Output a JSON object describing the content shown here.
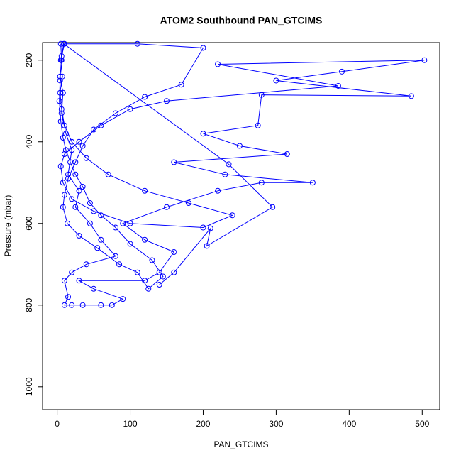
{
  "chart_data": {
    "type": "line",
    "title": "ATOM2 Southbound PAN_GTCIMS",
    "x_label": "PAN_GTCIMS",
    "y_label": "Pressure (mbar)",
    "x": [
      5,
      6,
      4,
      8,
      6,
      12,
      20,
      15,
      30,
      25,
      45,
      60,
      80,
      40,
      20,
      10,
      15,
      10,
      20,
      35,
      60,
      75,
      90,
      50,
      30,
      120,
      140,
      160,
      120,
      90,
      150,
      220,
      280,
      350,
      230,
      160,
      315,
      250,
      200,
      275,
      280,
      485,
      300,
      390,
      503,
      220,
      385,
      150,
      100,
      60,
      30,
      10,
      5,
      8,
      20,
      50,
      100,
      200,
      240,
      180,
      120,
      70,
      40,
      20,
      10,
      6,
      4,
      7,
      5,
      10,
      110,
      200,
      170,
      120,
      80,
      50,
      35,
      25,
      15,
      10,
      8,
      14,
      30,
      55,
      85,
      110,
      125,
      145,
      130,
      100,
      80,
      60,
      45,
      35,
      25,
      18,
      12,
      8,
      5,
      3,
      4,
      6,
      9,
      235,
      295,
      205,
      210,
      160,
      140
    ],
    "series": [
      {
        "color": "#0000ff",
        "marker": "circle",
        "values": [
          160,
          200,
          240,
          280,
          330,
          380,
          420,
          480,
          520,
          560,
          600,
          640,
          680,
          700,
          720,
          740,
          780,
          800,
          800,
          800,
          800,
          800,
          785,
          760,
          740,
          740,
          720,
          670,
          640,
          600,
          560,
          520,
          500,
          500,
          480,
          450,
          430,
          410,
          380,
          360,
          285,
          288,
          250,
          228,
          200,
          210,
          263,
          300,
          320,
          360,
          400,
          430,
          460,
          500,
          540,
          570,
          600,
          610,
          580,
          550,
          520,
          480,
          440,
          400,
          360,
          320,
          280,
          240,
          200,
          160,
          160,
          170,
          260,
          290,
          330,
          370,
          410,
          450,
          490,
          530,
          560,
          600,
          630,
          660,
          700,
          720,
          760,
          730,
          690,
          650,
          610,
          580,
          550,
          510,
          480,
          450,
          420,
          390,
          350,
          300,
          250,
          190,
          160,
          455,
          560,
          655,
          612,
          720,
          750
        ]
      }
    ],
    "xlim": [
      -20,
      524
    ],
    "ylim": [
      1056,
      157
    ],
    "y_reversed": true,
    "xticks": [
      0,
      100,
      200,
      300,
      400,
      500
    ],
    "yticks": [
      200,
      400,
      600,
      800,
      1000
    ]
  }
}
